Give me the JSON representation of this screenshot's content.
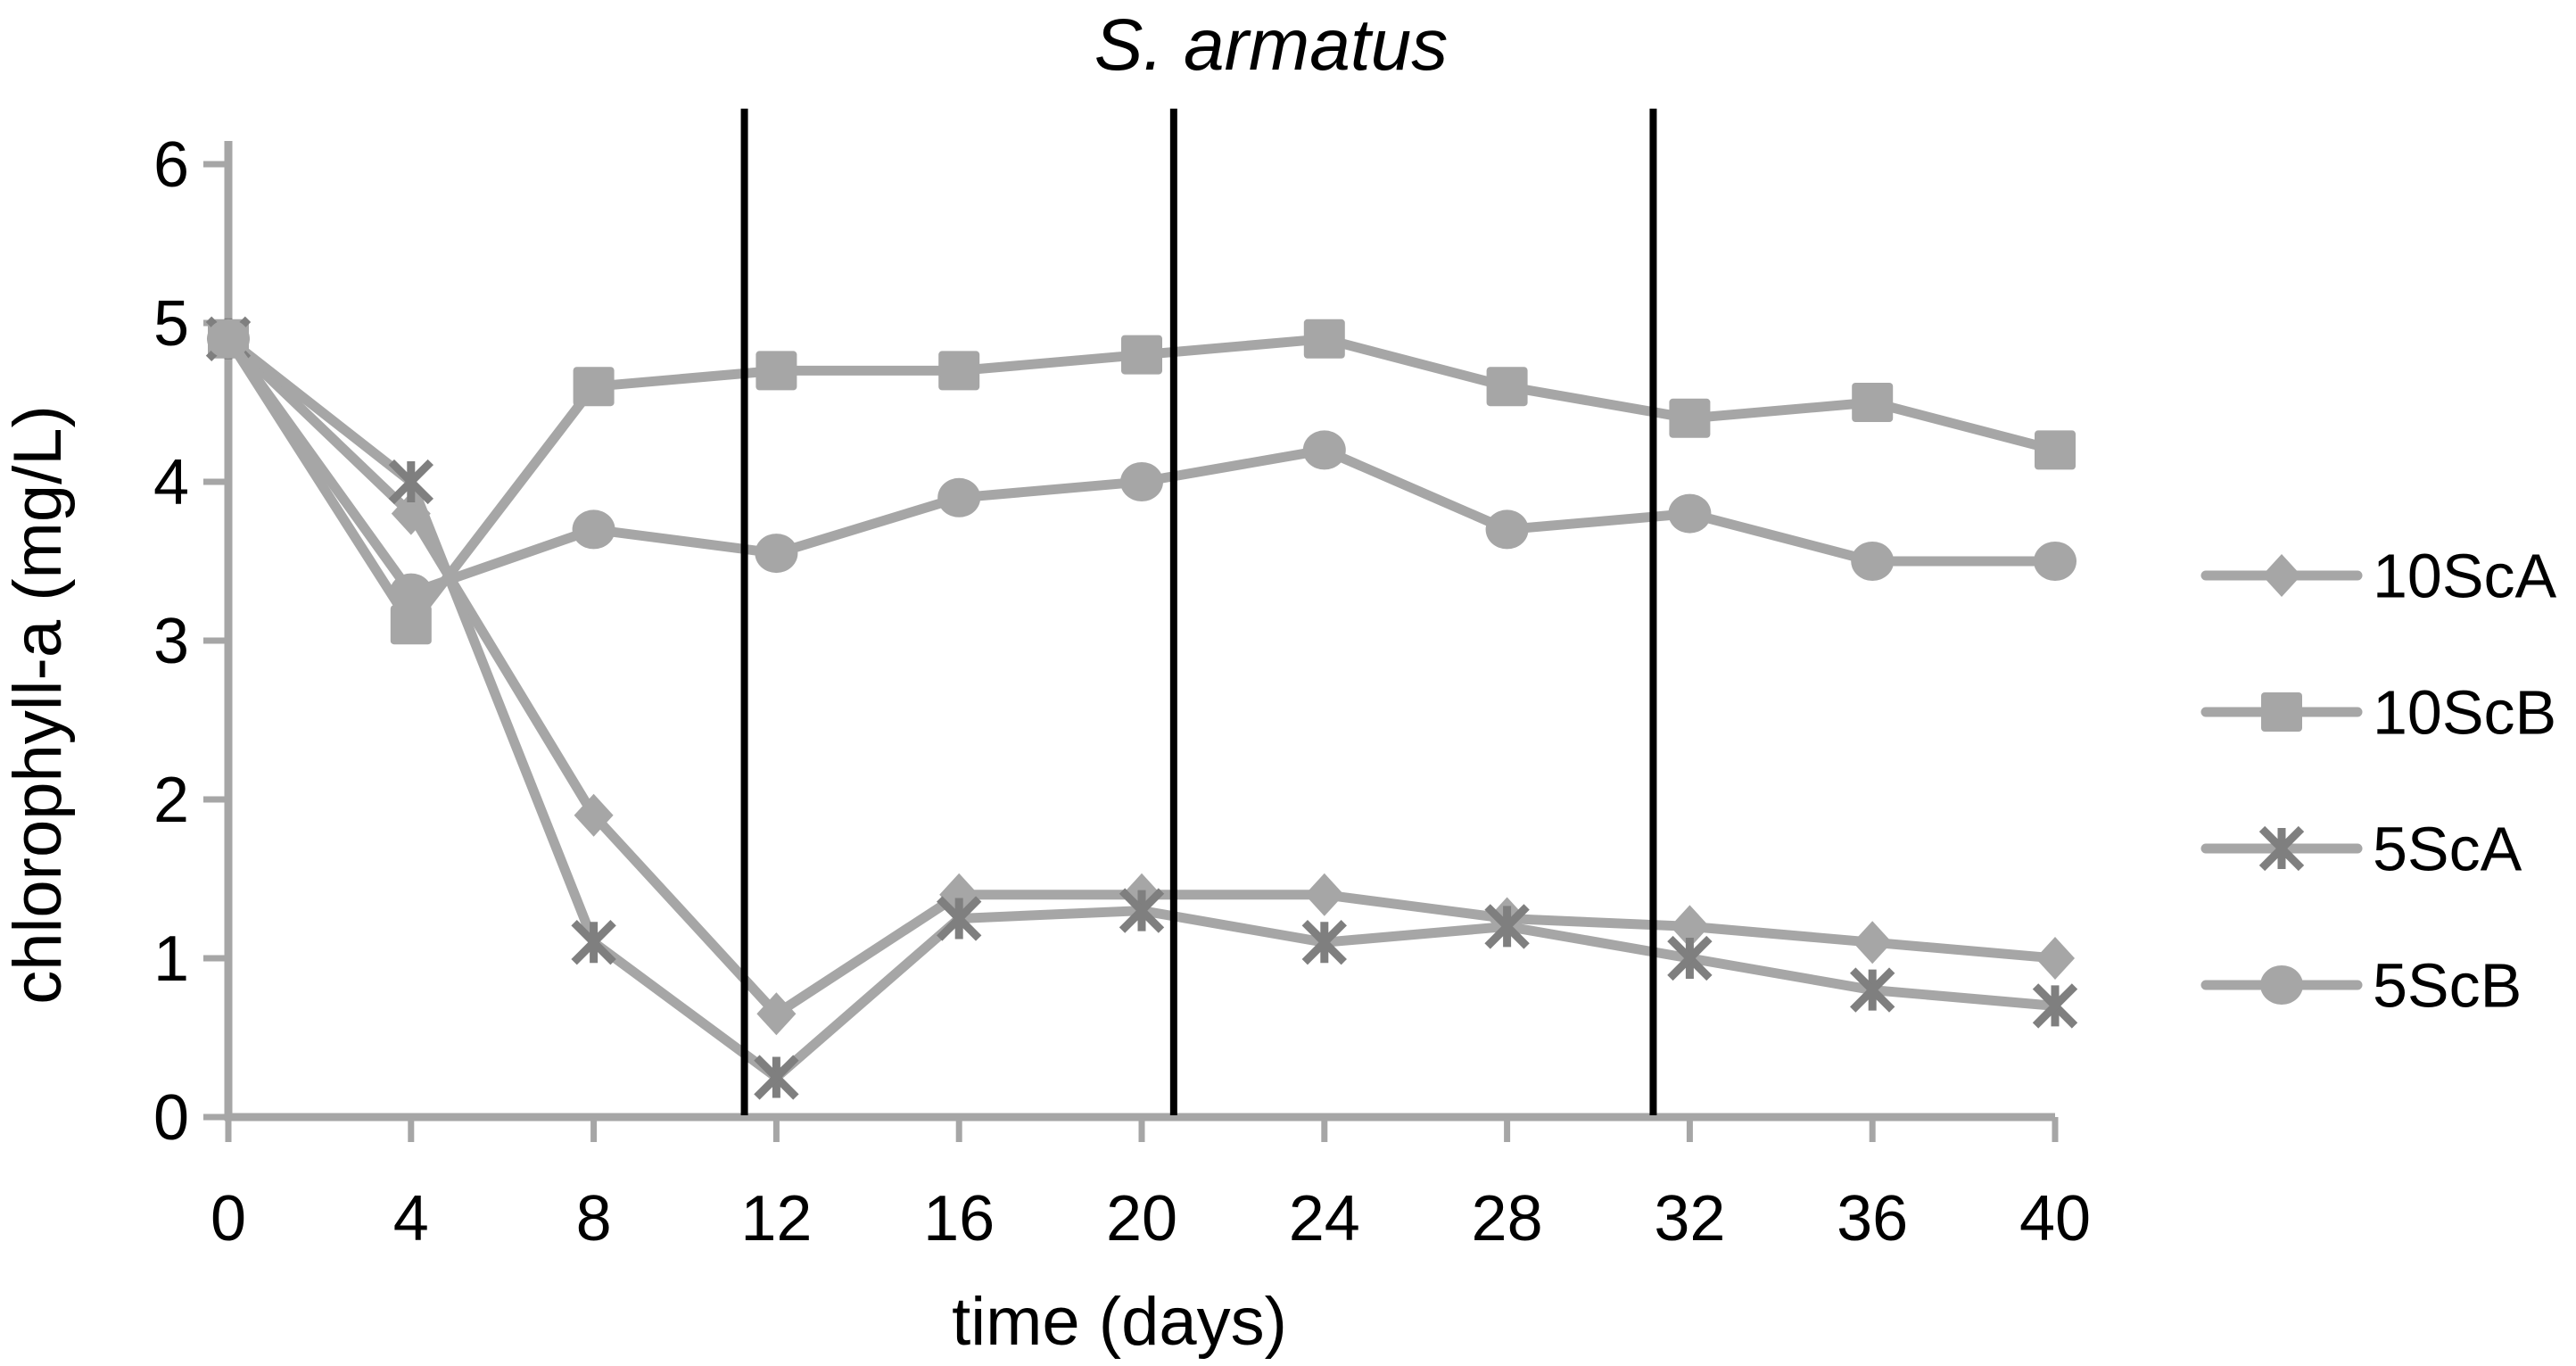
{
  "figure": {
    "title": "S. armatus",
    "xlabel": "time (days)",
    "ylabel": "chlorophyll-a (mg/L)"
  },
  "chart_data": {
    "type": "line",
    "x": [
      0,
      4,
      8,
      12,
      16,
      20,
      24,
      28,
      32,
      36,
      40
    ],
    "series": [
      {
        "name": "10ScA",
        "marker": "diamond",
        "color": "#a6a6a6",
        "marker_color": "#a6a6a6",
        "values": [
          4.9,
          3.8,
          1.9,
          0.65,
          1.4,
          1.4,
          1.4,
          1.25,
          1.2,
          1.1,
          1.0
        ]
      },
      {
        "name": "10ScB",
        "marker": "square",
        "color": "#a6a6a6",
        "marker_color": "#a6a6a6",
        "values": [
          4.9,
          3.1,
          4.6,
          4.7,
          4.7,
          4.8,
          4.9,
          4.6,
          4.4,
          4.5,
          4.2
        ]
      },
      {
        "name": "5ScA",
        "marker": "asterisk",
        "color": "#a6a6a6",
        "marker_color": "#7f7f7f",
        "values": [
          4.9,
          4.0,
          1.1,
          0.25,
          1.25,
          1.3,
          1.1,
          1.2,
          1.0,
          0.8,
          0.7
        ]
      },
      {
        "name": "5ScB",
        "marker": "circle",
        "color": "#a6a6a6",
        "marker_color": "#a6a6a6",
        "values": [
          4.9,
          3.3,
          3.7,
          3.55,
          3.9,
          4.0,
          4.2,
          3.7,
          3.8,
          3.5,
          3.5
        ]
      }
    ],
    "vertical_event_lines_x": [
      11.3,
      20.7,
      31.2
    ],
    "vertical_line_color": "#000000",
    "xticks": [
      0,
      4,
      8,
      12,
      16,
      20,
      24,
      28,
      32,
      36,
      40
    ],
    "yticks": [
      0,
      1,
      2,
      3,
      4,
      5,
      6
    ],
    "xlim": [
      0,
      40
    ],
    "ylim": [
      0,
      6
    ],
    "grid": false,
    "legend_position": "right",
    "axis_color": "#a6a6a6",
    "text_color": "#000000"
  }
}
